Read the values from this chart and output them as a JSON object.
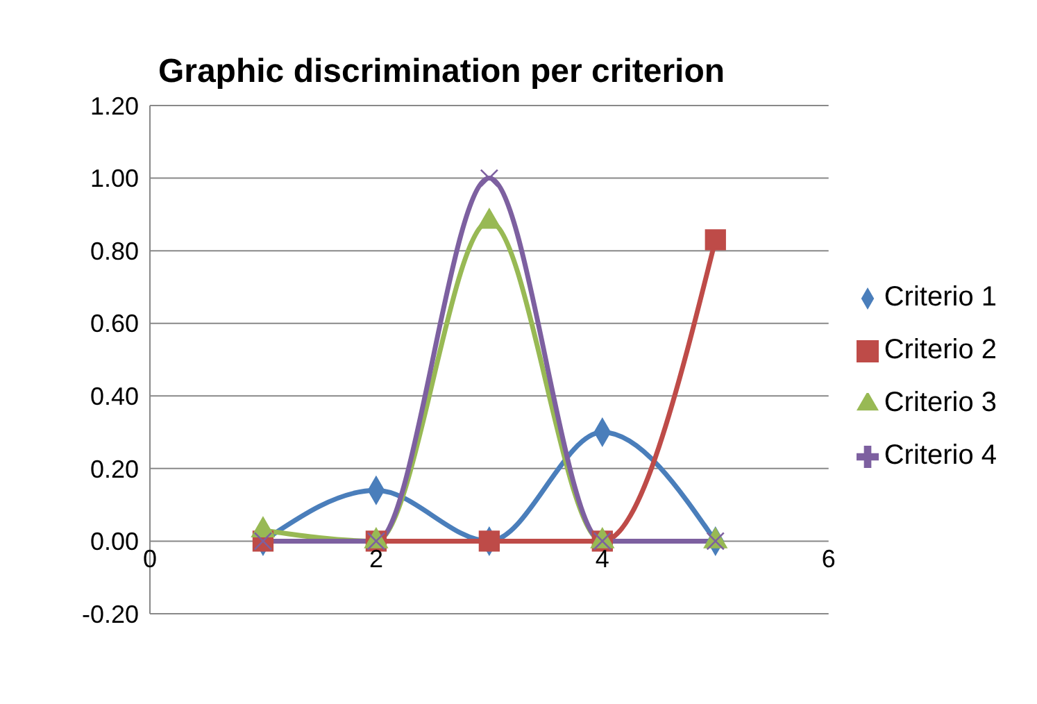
{
  "chart_data": {
    "type": "line",
    "title": "Graphic discrimination per criterion",
    "x": [
      1,
      2,
      3,
      4,
      5
    ],
    "series": [
      {
        "name": "Criterio 1",
        "color": "#4a7ebb",
        "values": [
          0,
          0.14,
          0,
          0.3,
          0
        ],
        "marker": "diamond"
      },
      {
        "name": "Criterio 2",
        "color": "#be4b48",
        "values": [
          0,
          0,
          0,
          0,
          0.83
        ],
        "marker": "square"
      },
      {
        "name": "Criterio 3",
        "color": "#98b954",
        "values": [
          0.03,
          0,
          0.88,
          0,
          0
        ],
        "marker": "triangle"
      },
      {
        "name": "Criterio 4",
        "color": "#7d60a0",
        "values": [
          0,
          0,
          1,
          0,
          0
        ],
        "marker": "cross"
      }
    ],
    "xlim": [
      0,
      6
    ],
    "xticks": [
      0,
      2,
      4,
      6
    ],
    "ylim": [
      -0.2,
      1.2
    ],
    "yticks": [
      {
        "value": -0.2,
        "label": "-0.20"
      },
      {
        "value": 0,
        "label": "0.00"
      },
      {
        "value": 0.2,
        "label": "0.20"
      },
      {
        "value": 0.4,
        "label": "0.40"
      },
      {
        "value": 0.6,
        "label": "0.60"
      },
      {
        "value": 0.8,
        "label": "0.80"
      },
      {
        "value": 1,
        "label": "1.00"
      },
      {
        "value": 1.2,
        "label": "1.20"
      }
    ],
    "grid": "y",
    "legend": "right",
    "line_style": "solid"
  }
}
